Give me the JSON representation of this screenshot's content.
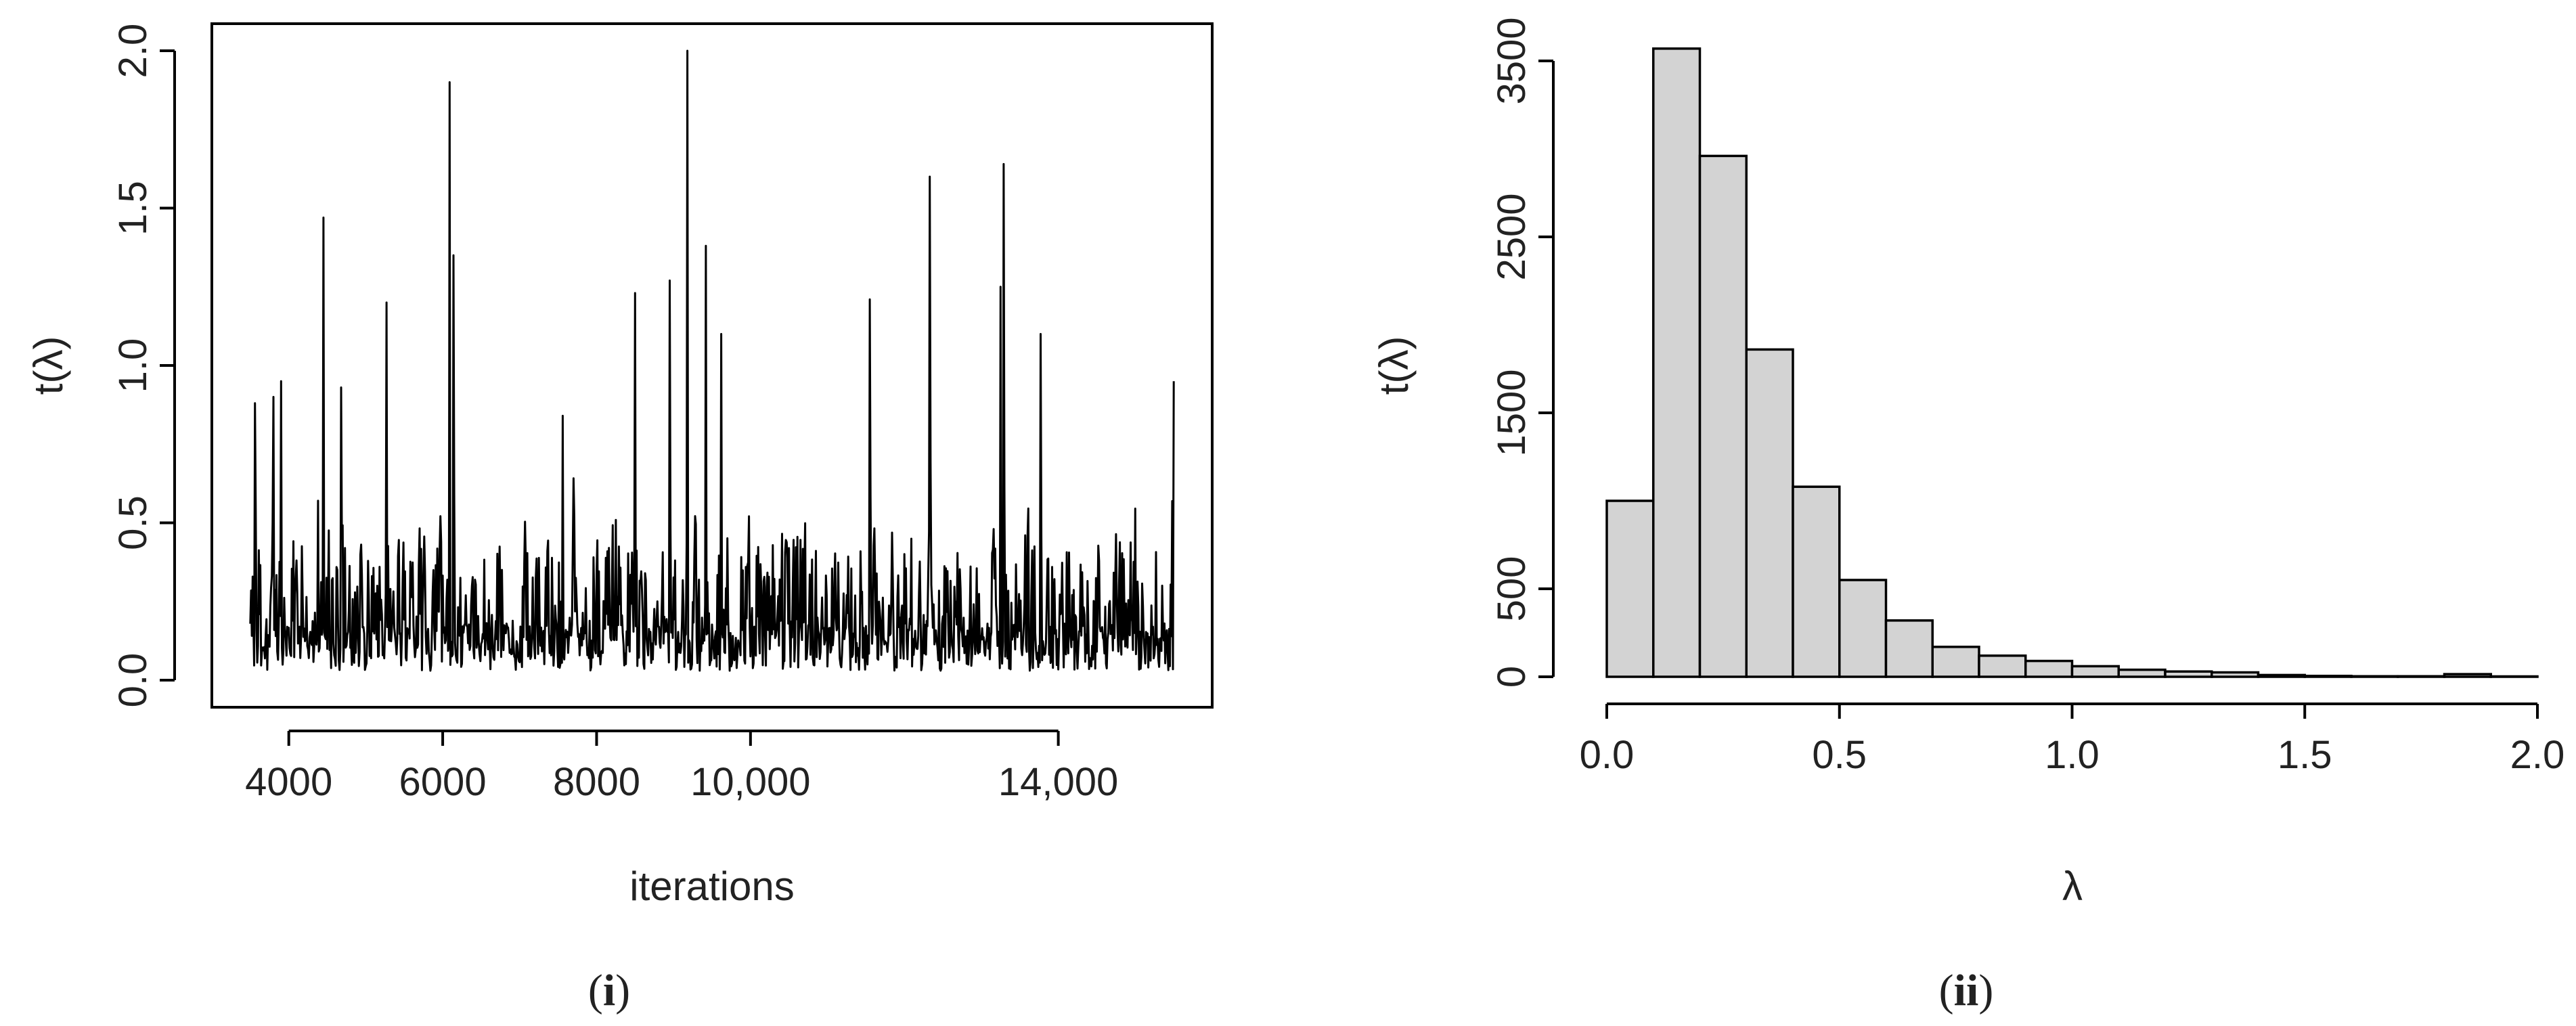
{
  "chart_data": [
    {
      "id": "trace",
      "type": "line",
      "panel_label": "i",
      "xlabel": "iterations",
      "ylabel": "t(λ)",
      "xlim": [
        3000,
        16000
      ],
      "ylim": [
        0,
        2.0
      ],
      "x_ticks": [
        4000,
        6000,
        8000,
        10000,
        14000
      ],
      "x_tick_labels": [
        "4000",
        "6000",
        "8000",
        "10,000",
        "14,000"
      ],
      "y_ticks": [
        0.0,
        0.5,
        1.0,
        1.5,
        2.0
      ],
      "y_tick_labels": [
        "0.0",
        "0.5",
        "1.0",
        "1.5",
        "2.0"
      ],
      "grid": false,
      "series": [
        {
          "x_start": 3500,
          "x_end": 15500,
          "baseline_mean": 0.27,
          "spikes": [
            {
              "x": 3560,
              "y": 0.88
            },
            {
              "x": 3800,
              "y": 0.9
            },
            {
              "x": 3900,
              "y": 0.95
            },
            {
              "x": 4450,
              "y": 0.9
            },
            {
              "x": 4450,
              "y": 1.47
            },
            {
              "x": 4680,
              "y": 0.93
            },
            {
              "x": 5270,
              "y": 1.2
            },
            {
              "x": 6090,
              "y": 1.9
            },
            {
              "x": 6140,
              "y": 1.35
            },
            {
              "x": 7560,
              "y": 0.84
            },
            {
              "x": 8500,
              "y": 1.23
            },
            {
              "x": 8950,
              "y": 1.27
            },
            {
              "x": 9180,
              "y": 2.0
            },
            {
              "x": 9420,
              "y": 1.38
            },
            {
              "x": 9620,
              "y": 1.1
            },
            {
              "x": 11550,
              "y": 1.21
            },
            {
              "x": 12330,
              "y": 1.6
            },
            {
              "x": 13250,
              "y": 1.25
            },
            {
              "x": 13290,
              "y": 1.64
            },
            {
              "x": 13770,
              "y": 1.1
            },
            {
              "x": 15500,
              "y": 0.95
            }
          ]
        }
      ]
    },
    {
      "id": "histogram",
      "type": "bar",
      "panel_label": "ii",
      "xlabel": "λ",
      "ylabel": "t(λ)",
      "xlim": [
        0,
        2.0
      ],
      "ylim": [
        0,
        3500
      ],
      "x_ticks": [
        0.0,
        0.5,
        1.0,
        1.5,
        2.0
      ],
      "x_tick_labels": [
        "0.0",
        "0.5",
        "1.0",
        "1.5",
        "2.0"
      ],
      "y_ticks": [
        0,
        500,
        1500,
        2500,
        3500
      ],
      "y_tick_labels": [
        "0",
        "500",
        "1500",
        "2500",
        "3500"
      ],
      "grid": false,
      "bin_width": 0.1,
      "bins": [
        {
          "x0": 0.0,
          "value": 1000
        },
        {
          "x0": 0.1,
          "value": 3570
        },
        {
          "x0": 0.2,
          "value": 2960
        },
        {
          "x0": 0.3,
          "value": 1860
        },
        {
          "x0": 0.4,
          "value": 1080
        },
        {
          "x0": 0.5,
          "value": 550
        },
        {
          "x0": 0.6,
          "value": 320
        },
        {
          "x0": 0.7,
          "value": 170
        },
        {
          "x0": 0.8,
          "value": 120
        },
        {
          "x0": 0.9,
          "value": 90
        },
        {
          "x0": 1.0,
          "value": 60
        },
        {
          "x0": 1.1,
          "value": 40
        },
        {
          "x0": 1.2,
          "value": 30
        },
        {
          "x0": 1.3,
          "value": 25
        },
        {
          "x0": 1.4,
          "value": 10
        },
        {
          "x0": 1.5,
          "value": 5
        },
        {
          "x0": 1.6,
          "value": 3
        },
        {
          "x0": 1.7,
          "value": 3
        },
        {
          "x0": 1.8,
          "value": 15
        },
        {
          "x0": 1.9,
          "value": 2
        }
      ]
    }
  ]
}
